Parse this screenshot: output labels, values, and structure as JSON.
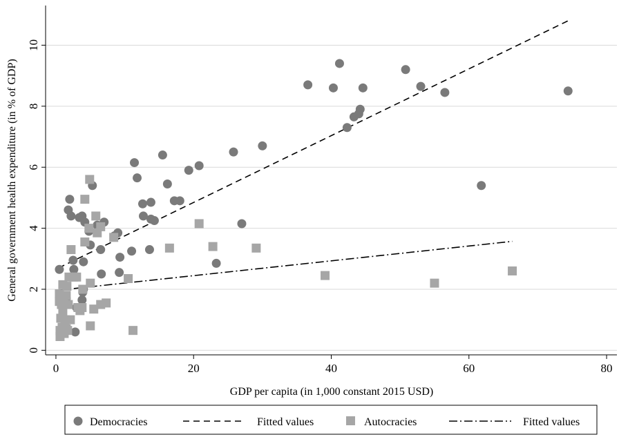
{
  "chart_data": {
    "type": "scatter",
    "xlabel": "GDP per capita (in 1,000 constant 2015 USD)",
    "ylabel": "General government health expenditure (in % of GDP)",
    "xlim": [
      -1.5,
      81.5
    ],
    "ylim": [
      -0.15,
      11.3
    ],
    "x_ticks": [
      0,
      20,
      40,
      60,
      80
    ],
    "y_ticks": [
      0,
      2,
      4,
      6,
      8,
      10
    ],
    "grid": "horizontal",
    "legend_position": "bottom",
    "series": [
      {
        "name": "Democracies",
        "marker": "circle",
        "color": "#7a7a7a",
        "points": [
          [
            0.5,
            2.65
          ],
          [
            1.5,
            1.7
          ],
          [
            1.8,
            4.6
          ],
          [
            2.0,
            4.95
          ],
          [
            2.2,
            4.4
          ],
          [
            2.5,
            2.95
          ],
          [
            2.6,
            2.65
          ],
          [
            2.8,
            0.6
          ],
          [
            3.0,
            1.4
          ],
          [
            3.4,
            4.35
          ],
          [
            3.8,
            4.4
          ],
          [
            4.0,
            2.9
          ],
          [
            4.2,
            4.2
          ],
          [
            3.9,
            1.9
          ],
          [
            3.8,
            1.65
          ],
          [
            4.0,
            2.0
          ],
          [
            4.8,
            3.9
          ],
          [
            5.0,
            3.45
          ],
          [
            5.3,
            5.4
          ],
          [
            6.0,
            4.1
          ],
          [
            6.5,
            3.3
          ],
          [
            6.6,
            2.5
          ],
          [
            7.0,
            4.2
          ],
          [
            8.5,
            3.75
          ],
          [
            9.0,
            3.85
          ],
          [
            9.2,
            2.55
          ],
          [
            9.3,
            3.05
          ],
          [
            11.0,
            3.25
          ],
          [
            11.4,
            6.15
          ],
          [
            11.8,
            5.65
          ],
          [
            12.6,
            4.8
          ],
          [
            12.7,
            4.4
          ],
          [
            13.6,
            3.3
          ],
          [
            13.8,
            4.3
          ],
          [
            13.8,
            4.85
          ],
          [
            14.3,
            4.25
          ],
          [
            15.5,
            6.4
          ],
          [
            16.2,
            5.45
          ],
          [
            17.2,
            4.9
          ],
          [
            18.0,
            4.9
          ],
          [
            19.3,
            5.9
          ],
          [
            20.8,
            6.05
          ],
          [
            23.3,
            2.85
          ],
          [
            25.8,
            6.5
          ],
          [
            27.0,
            4.15
          ],
          [
            30.0,
            6.7
          ],
          [
            36.6,
            8.7
          ],
          [
            40.3,
            8.6
          ],
          [
            41.2,
            9.4
          ],
          [
            42.3,
            7.3
          ],
          [
            43.3,
            7.65
          ],
          [
            44.0,
            7.75
          ],
          [
            44.2,
            7.9
          ],
          [
            44.6,
            8.6
          ],
          [
            50.8,
            9.2
          ],
          [
            53.0,
            8.65
          ],
          [
            56.5,
            8.45
          ],
          [
            61.8,
            5.4
          ],
          [
            74.4,
            8.5
          ]
        ]
      },
      {
        "name": "Fitted values",
        "style": "dashed",
        "color": "#000000",
        "points": [
          [
            0.4,
            2.7
          ],
          [
            74.4,
            10.8
          ]
        ]
      },
      {
        "name": "Autocracies",
        "marker": "square",
        "color": "#a6a6a6",
        "points": [
          [
            0.5,
            1.6
          ],
          [
            0.5,
            1.85
          ],
          [
            0.6,
            0.45
          ],
          [
            0.6,
            0.65
          ],
          [
            0.7,
            1.05
          ],
          [
            0.8,
            1.5
          ],
          [
            0.9,
            0.75
          ],
          [
            1.0,
            1.25
          ],
          [
            1.0,
            2.15
          ],
          [
            1.1,
            1.6
          ],
          [
            1.2,
            0.55
          ],
          [
            1.3,
            0.9
          ],
          [
            1.4,
            1.0
          ],
          [
            1.5,
            1.8
          ],
          [
            1.5,
            0.7
          ],
          [
            1.6,
            2.1
          ],
          [
            1.7,
            0.65
          ],
          [
            1.8,
            1.5
          ],
          [
            1.9,
            2.4
          ],
          [
            2.1,
            1.0
          ],
          [
            2.2,
            3.3
          ],
          [
            2.6,
            2.4
          ],
          [
            3.0,
            2.4
          ],
          [
            3.2,
            1.4
          ],
          [
            3.5,
            1.3
          ],
          [
            3.8,
            1.4
          ],
          [
            3.9,
            2.0
          ],
          [
            4.2,
            3.55
          ],
          [
            4.2,
            4.95
          ],
          [
            4.8,
            4.0
          ],
          [
            4.9,
            5.6
          ],
          [
            5.0,
            2.2
          ],
          [
            5.0,
            0.8
          ],
          [
            5.5,
            1.35
          ],
          [
            5.8,
            4.4
          ],
          [
            6.0,
            3.85
          ],
          [
            6.5,
            4.05
          ],
          [
            6.5,
            1.5
          ],
          [
            7.3,
            1.55
          ],
          [
            8.4,
            3.7
          ],
          [
            10.5,
            2.35
          ],
          [
            11.2,
            0.65
          ],
          [
            16.5,
            3.35
          ],
          [
            20.8,
            4.15
          ],
          [
            22.8,
            3.4
          ],
          [
            29.1,
            3.35
          ],
          [
            39.1,
            2.45
          ],
          [
            55.0,
            2.2
          ],
          [
            66.3,
            2.6
          ]
        ]
      },
      {
        "name": "Fitted values",
        "style": "dashdot",
        "color": "#000000",
        "points": [
          [
            0.4,
            1.97
          ],
          [
            66.3,
            3.57
          ]
        ]
      }
    ]
  }
}
